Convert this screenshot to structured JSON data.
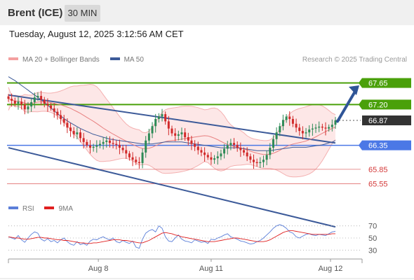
{
  "header": {
    "instrument": "Brent (ICE)",
    "timeframe": "30 MIN",
    "datetime": "Tuesday, August 12, 2025 3:12:56 AM CET"
  },
  "legend_top": {
    "items": [
      {
        "label": "MA 20 + Bollinger Bands",
        "color": "#f4a0a0"
      },
      {
        "label": "MA 50",
        "color": "#3c5a99"
      }
    ],
    "copyright": "Research © 2025 Trading Central"
  },
  "legend_bottom": {
    "items": [
      {
        "label": "RSI",
        "color": "#5b7fd9"
      },
      {
        "label": "9MA",
        "color": "#e02020"
      }
    ]
  },
  "colors": {
    "up": "#2e8b57",
    "down": "#d12a2a",
    "resistance": "#4aa00a",
    "support": "#4b78e6",
    "pivot": "#333333",
    "weak_support": "#e07070",
    "channel": "#3c5a99",
    "bollinger_fill": "#fde4e4"
  },
  "chart_data": {
    "type": "candlestick",
    "x_labels": [
      "Aug 8",
      "Aug 11",
      "Aug 12"
    ],
    "ylim": [
      65.25,
      67.95
    ],
    "levels": [
      {
        "value": 67.65,
        "label": "67.65",
        "kind": "resistance"
      },
      {
        "value": 67.2,
        "label": "67.20",
        "kind": "resistance"
      },
      {
        "value": 66.87,
        "label": "66.87",
        "kind": "pivot"
      },
      {
        "value": 66.35,
        "label": "66.35",
        "kind": "support"
      },
      {
        "value": 65.85,
        "label": "65.85",
        "kind": "weak_support"
      },
      {
        "value": 65.55,
        "label": "65.55",
        "kind": "weak_support"
      }
    ],
    "close": [
      67.32,
      67.28,
      67.22,
      67.26,
      67.2,
      67.1,
      67.16,
      67.25,
      67.35,
      67.38,
      67.3,
      67.22,
      67.18,
      67.12,
      67.05,
      66.98,
      66.9,
      66.82,
      66.72,
      66.65,
      66.58,
      66.62,
      66.5,
      66.42,
      66.35,
      66.3,
      66.32,
      66.35,
      66.38,
      66.42,
      66.45,
      66.4,
      66.38,
      66.36,
      66.3,
      66.25,
      66.18,
      66.1,
      66.05,
      66.0,
      65.98,
      66.2,
      66.45,
      66.6,
      66.75,
      66.9,
      66.95,
      67.0,
      66.85,
      66.7,
      66.6,
      66.55,
      66.58,
      66.62,
      66.52,
      66.45,
      66.38,
      66.32,
      66.25,
      66.2,
      66.15,
      66.1,
      66.05,
      66.08,
      66.12,
      66.18,
      66.28,
      66.35,
      66.4,
      66.36,
      66.3,
      66.25,
      66.2,
      66.12,
      66.05,
      66.0,
      65.98,
      66.0,
      66.05,
      66.15,
      66.3,
      66.48,
      66.62,
      66.75,
      66.88,
      66.95,
      66.9,
      66.8,
      66.72,
      66.65,
      66.6,
      66.62,
      66.68,
      66.7,
      66.72,
      66.74,
      66.72,
      66.7,
      66.73,
      66.78,
      66.87
    ],
    "ma50": [
      67.78,
      67.74,
      67.7,
      67.65,
      67.6,
      67.55,
      67.5,
      67.45,
      67.4,
      67.35,
      67.3,
      67.25,
      67.19,
      67.13,
      67.07,
      67.01,
      66.96,
      66.91,
      66.86,
      66.82,
      66.78,
      66.74,
      66.7,
      66.67,
      66.64,
      66.61,
      66.58,
      66.56,
      66.54,
      66.52,
      66.5,
      66.48,
      66.47,
      66.46,
      66.45,
      66.44,
      66.43,
      66.42,
      66.41,
      66.4,
      66.39,
      66.38,
      66.38,
      66.38,
      66.38,
      66.39,
      66.4,
      66.41,
      66.42,
      66.42,
      66.42,
      66.42,
      66.42,
      66.42,
      66.41,
      66.4,
      66.39,
      66.38,
      66.37,
      66.36,
      66.35,
      66.34,
      66.33,
      66.32,
      66.31,
      66.3,
      66.3,
      66.3,
      66.3,
      66.3,
      66.3,
      66.29,
      66.28,
      66.27,
      66.26,
      66.25,
      66.24,
      66.24,
      66.24,
      66.24,
      66.24,
      66.25,
      66.26,
      66.27,
      66.28,
      66.29,
      66.3,
      66.31,
      66.31,
      66.31,
      66.31,
      66.31,
      66.32,
      66.33,
      66.34,
      66.35,
      66.36,
      66.38,
      66.4,
      66.42,
      66.45
    ],
    "channel_upper": [
      [
        0,
        67.4
      ],
      [
        100,
        66.4
      ]
    ],
    "channel_lower": [
      [
        0,
        66.3
      ],
      [
        100,
        64.65
      ]
    ],
    "forecast_arrow": {
      "from": 66.85,
      "to": 67.6
    },
    "rsi_ticks": [
      70,
      50,
      30
    ],
    "rsi": [
      52,
      50,
      48,
      54,
      47,
      43,
      50,
      56,
      60,
      58,
      48,
      45,
      49,
      44,
      46,
      42,
      47,
      50,
      44,
      40,
      38,
      44,
      39,
      41,
      38,
      45,
      48,
      47,
      50,
      52,
      49,
      47,
      50,
      44,
      42,
      46,
      43,
      41,
      45,
      35,
      33,
      48,
      58,
      62,
      64,
      60,
      70,
      66,
      52,
      45,
      44,
      50,
      55,
      48,
      45,
      44,
      42,
      47,
      45,
      43,
      44,
      41,
      48,
      47,
      50,
      52,
      55,
      57,
      52,
      50,
      48,
      45,
      44,
      42,
      40,
      41,
      44,
      46,
      50,
      55,
      60,
      66,
      70,
      72,
      70,
      66,
      60,
      58,
      52,
      50,
      53,
      56,
      57,
      55,
      54,
      56,
      55,
      54,
      57,
      60,
      61
    ],
    "rsi_ma": [
      52,
      51,
      50,
      50,
      49,
      48,
      48,
      49,
      50,
      51,
      51,
      50,
      50,
      49,
      48,
      47,
      47,
      46,
      46,
      45,
      44,
      43,
      42,
      42,
      41,
      41,
      42,
      42,
      43,
      44,
      45,
      46,
      47,
      47,
      47,
      46,
      46,
      45,
      44,
      43,
      42,
      42,
      44,
      46,
      49,
      52,
      55,
      58,
      59,
      58,
      57,
      55,
      54,
      52,
      51,
      50,
      49,
      48,
      47,
      46,
      45,
      44,
      44,
      44,
      45,
      46,
      47,
      48,
      49,
      50,
      50,
      49,
      48,
      47,
      46,
      45,
      44,
      44,
      44,
      45,
      47,
      50,
      53,
      56,
      59,
      61,
      62,
      62,
      61,
      60,
      59,
      58,
      57,
      56,
      56,
      56,
      56,
      56,
      56,
      57,
      57
    ]
  }
}
